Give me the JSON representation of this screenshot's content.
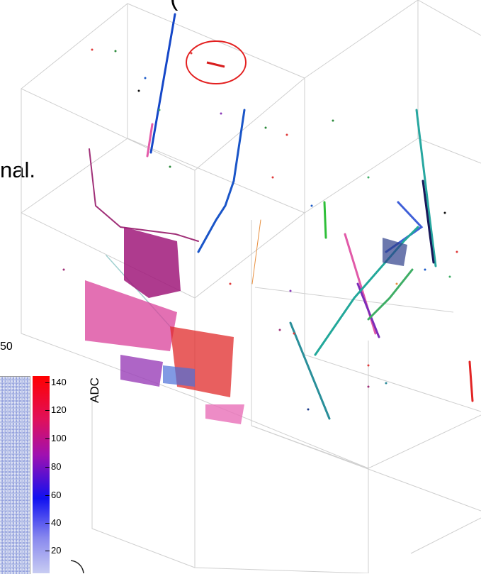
{
  "slide": {
    "top_text": "(",
    "left_text": "nal.",
    "tick_label": "50"
  },
  "colorbar": {
    "label": "ADC",
    "ticks": [
      "140",
      "120",
      "100",
      "80",
      "60",
      "40",
      "20"
    ]
  },
  "colors": {
    "box_edges": "#cfcfcf",
    "highlight_circle": "#e32020"
  }
}
